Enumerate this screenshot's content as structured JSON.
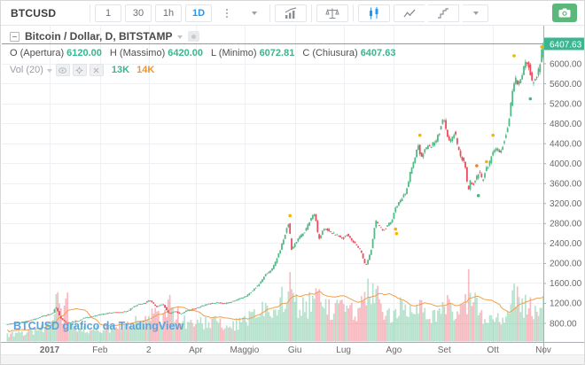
{
  "toolbar": {
    "symbol": "BTCUSD",
    "intervals": [
      {
        "label": "1",
        "active": false
      },
      {
        "label": "30",
        "active": false
      },
      {
        "label": "1h",
        "active": false
      },
      {
        "label": "1D",
        "active": true
      }
    ],
    "accent_color": "#2196f3",
    "camera_color": "#5cb87a",
    "icons": [
      "more-dots",
      "style-dropdown",
      "indicators",
      "compare-scales",
      "candlestick-style",
      "line-style",
      "step-style",
      "styles-caret",
      "camera-snapshot"
    ]
  },
  "legend": {
    "title": "Bitcoin / Dollar, D, BITSTAMP",
    "ohlc": [
      {
        "label": "O (Apertura)",
        "value": "6120.00"
      },
      {
        "label": "H (Massimo)",
        "value": "6420.00"
      },
      {
        "label": "L (Minimo)",
        "value": "6072.81"
      },
      {
        "label": "C (Chiusura)",
        "value": "6407.63"
      }
    ],
    "value_color": "#3bb58f",
    "vol": {
      "label": "Vol (20)",
      "current": "13K",
      "ma": "14K",
      "current_color": "#3bb58f",
      "ma_color": "#ef9433"
    }
  },
  "watermark": "BTCUSD grafico da TradingView",
  "chart_data": {
    "type": "candlestick",
    "title": "Bitcoin / Dollar, D, BITSTAMP",
    "interval": "D",
    "last_price": 6407.63,
    "last_candle": {
      "open": 6120.0,
      "high": 6420.0,
      "low": 6072.81,
      "close": 6407.63
    },
    "volume_current": "13K",
    "volume_ma": "14K",
    "y_axis": {
      "ticks": [
        6000,
        5600,
        5200,
        4800,
        4400,
        4000,
        3600,
        3200,
        2800,
        2400,
        2000,
        1600,
        1200,
        800
      ],
      "decimals": 2,
      "visible_range": [
        410,
        6720
      ],
      "grid": true
    },
    "x_axis": {
      "labels": [
        {
          "text": "2017",
          "day": 0,
          "bold": true
        },
        {
          "text": "Feb",
          "day": 31
        },
        {
          "text": "2",
          "day": 61
        },
        {
          "text": "Apr",
          "day": 90
        },
        {
          "text": "Maggio",
          "day": 120
        },
        {
          "text": "Giu",
          "day": 151
        },
        {
          "text": "Lug",
          "day": 181
        },
        {
          "text": "Ago",
          "day": 212
        },
        {
          "text": "Set",
          "day": 243
        },
        {
          "text": "Ott",
          "day": 273
        },
        {
          "text": "Nov",
          "day": 304
        }
      ],
      "day0": "2017-01-01",
      "grid": true
    },
    "price_path": [
      [
        -26,
        775
      ],
      [
        -20,
        795
      ],
      [
        -14,
        830
      ],
      [
        -7,
        895
      ],
      [
        -2,
        955
      ],
      [
        0,
        970
      ],
      [
        3,
        1020
      ],
      [
        4,
        1130
      ],
      [
        5,
        1080
      ],
      [
        7,
        905
      ],
      [
        11,
        790
      ],
      [
        14,
        820
      ],
      [
        18,
        835
      ],
      [
        22,
        905
      ],
      [
        26,
        920
      ],
      [
        31,
        965
      ],
      [
        38,
        1005
      ],
      [
        45,
        1010
      ],
      [
        49,
        1050
      ],
      [
        52,
        1120
      ],
      [
        56,
        1180
      ],
      [
        59,
        1190
      ],
      [
        62,
        1265
      ],
      [
        66,
        1120
      ],
      [
        70,
        1180
      ],
      [
        74,
        985
      ],
      [
        78,
        1030
      ],
      [
        81,
        970
      ],
      [
        84,
        1040
      ],
      [
        90,
        1085
      ],
      [
        95,
        1150
      ],
      [
        100,
        1190
      ],
      [
        104,
        1210
      ],
      [
        108,
        1180
      ],
      [
        113,
        1230
      ],
      [
        118,
        1290
      ],
      [
        122,
        1350
      ],
      [
        126,
        1470
      ],
      [
        130,
        1590
      ],
      [
        133,
        1750
      ],
      [
        137,
        1850
      ],
      [
        140,
        2050
      ],
      [
        143,
        2320
      ],
      [
        146,
        2650
      ],
      [
        148,
        2830
      ],
      [
        149,
        2250
      ],
      [
        151,
        2350
      ],
      [
        154,
        2500
      ],
      [
        158,
        2650
      ],
      [
        162,
        2930
      ],
      [
        164,
        2980
      ],
      [
        166,
        2480
      ],
      [
        170,
        2720
      ],
      [
        174,
        2600
      ],
      [
        178,
        2560
      ],
      [
        181,
        2480
      ],
      [
        184,
        2580
      ],
      [
        188,
        2400
      ],
      [
        192,
        2250
      ],
      [
        195,
        1930
      ],
      [
        197,
        2100
      ],
      [
        199,
        2350
      ],
      [
        201,
        2850
      ],
      [
        203,
        2750
      ],
      [
        206,
        2650
      ],
      [
        209,
        2780
      ],
      [
        211,
        2840
      ],
      [
        214,
        3150
      ],
      [
        217,
        3280
      ],
      [
        220,
        3420
      ],
      [
        223,
        3880
      ],
      [
        226,
        4150
      ],
      [
        227,
        4420
      ],
      [
        229,
        4120
      ],
      [
        232,
        4290
      ],
      [
        235,
        4350
      ],
      [
        238,
        4420
      ],
      [
        241,
        4680
      ],
      [
        243,
        4930
      ],
      [
        245,
        4580
      ],
      [
        247,
        4420
      ],
      [
        250,
        4620
      ],
      [
        252,
        4280
      ],
      [
        255,
        4050
      ],
      [
        257,
        3880
      ],
      [
        258,
        3280
      ],
      [
        259,
        3650
      ],
      [
        261,
        3560
      ],
      [
        263,
        3680
      ],
      [
        265,
        3850
      ],
      [
        267,
        3630
      ],
      [
        269,
        3880
      ],
      [
        271,
        3950
      ],
      [
        273,
        4250
      ],
      [
        276,
        4280
      ],
      [
        278,
        4180
      ],
      [
        280,
        4420
      ],
      [
        283,
        4780
      ],
      [
        285,
        5320
      ],
      [
        287,
        5700
      ],
      [
        289,
        5580
      ],
      [
        291,
        5700
      ],
      [
        293,
        5980
      ],
      [
        295,
        6050
      ],
      [
        296,
        5850
      ],
      [
        298,
        5560
      ],
      [
        300,
        5720
      ],
      [
        302,
        5920
      ],
      [
        303,
        6130
      ],
      [
        304,
        6407.63
      ]
    ],
    "volume_path_relative": [
      [
        -26,
        8
      ],
      [
        -15,
        10
      ],
      [
        -5,
        14
      ],
      [
        2,
        18
      ],
      [
        4,
        46
      ],
      [
        6,
        40
      ],
      [
        8,
        30
      ],
      [
        11,
        44
      ],
      [
        13,
        25
      ],
      [
        18,
        14
      ],
      [
        25,
        12
      ],
      [
        32,
        14
      ],
      [
        40,
        16
      ],
      [
        48,
        18
      ],
      [
        55,
        22
      ],
      [
        60,
        26
      ],
      [
        63,
        30
      ],
      [
        68,
        24
      ],
      [
        74,
        48
      ],
      [
        76,
        36
      ],
      [
        80,
        26
      ],
      [
        85,
        18
      ],
      [
        92,
        20
      ],
      [
        100,
        22
      ],
      [
        108,
        18
      ],
      [
        115,
        20
      ],
      [
        120,
        24
      ],
      [
        126,
        30
      ],
      [
        132,
        34
      ],
      [
        138,
        38
      ],
      [
        142,
        44
      ],
      [
        146,
        52
      ],
      [
        148,
        58
      ],
      [
        150,
        42
      ],
      [
        154,
        36
      ],
      [
        158,
        40
      ],
      [
        162,
        46
      ],
      [
        166,
        52
      ],
      [
        170,
        38
      ],
      [
        175,
        34
      ],
      [
        180,
        36
      ],
      [
        184,
        30
      ],
      [
        188,
        34
      ],
      [
        192,
        40
      ],
      [
        195,
        62
      ],
      [
        198,
        48
      ],
      [
        201,
        56
      ],
      [
        204,
        38
      ],
      [
        208,
        30
      ],
      [
        212,
        34
      ],
      [
        216,
        40
      ],
      [
        220,
        36
      ],
      [
        224,
        44
      ],
      [
        227,
        48
      ],
      [
        230,
        36
      ],
      [
        234,
        30
      ],
      [
        238,
        32
      ],
      [
        241,
        36
      ],
      [
        243,
        42
      ],
      [
        246,
        38
      ],
      [
        250,
        32
      ],
      [
        254,
        36
      ],
      [
        257,
        44
      ],
      [
        258,
        86
      ],
      [
        259,
        66
      ],
      [
        261,
        48
      ],
      [
        264,
        34
      ],
      [
        268,
        28
      ],
      [
        272,
        26
      ],
      [
        276,
        24
      ],
      [
        280,
        30
      ],
      [
        283,
        38
      ],
      [
        285,
        46
      ],
      [
        287,
        52
      ],
      [
        290,
        38
      ],
      [
        293,
        44
      ],
      [
        296,
        40
      ],
      [
        299,
        34
      ],
      [
        301,
        38
      ],
      [
        303,
        42
      ],
      [
        304,
        46
      ]
    ],
    "markers": [
      {
        "day": 148,
        "price": 2950,
        "color": "#f4b400"
      },
      {
        "day": 213,
        "price": 2680,
        "color": "#f4b400"
      },
      {
        "day": 213.6,
        "price": 2590,
        "color": "#f4b400"
      },
      {
        "day": 228,
        "price": 4560,
        "color": "#f4b400"
      },
      {
        "day": 263,
        "price": 3950,
        "color": "#f28033"
      },
      {
        "day": 264,
        "price": 3350,
        "color": "#45b97c"
      },
      {
        "day": 269,
        "price": 4030,
        "color": "#f4b400"
      },
      {
        "day": 273,
        "price": 4560,
        "color": "#f4b400"
      },
      {
        "day": 286,
        "price": 6150,
        "color": "#f4b400"
      },
      {
        "day": 296,
        "price": 5290,
        "color": "#45b97c"
      },
      {
        "day": 303,
        "price": 6330,
        "color": "#f4b400"
      }
    ],
    "colors": {
      "up": "#53b987",
      "down": "#eb4d5c",
      "vol_up": "rgba(83,185,135,0.42)",
      "vol_down": "rgba(235,77,92,0.38)",
      "volume_ma_line": "#f0a04d",
      "last_price_line": "#3cb690",
      "badge_bg": "#3cb690",
      "badge_text": "#ffffff",
      "grid": "#eef0f3",
      "axis_text": "#696969",
      "axis_line": "#a9adb3"
    },
    "legend_position": "top-left"
  }
}
